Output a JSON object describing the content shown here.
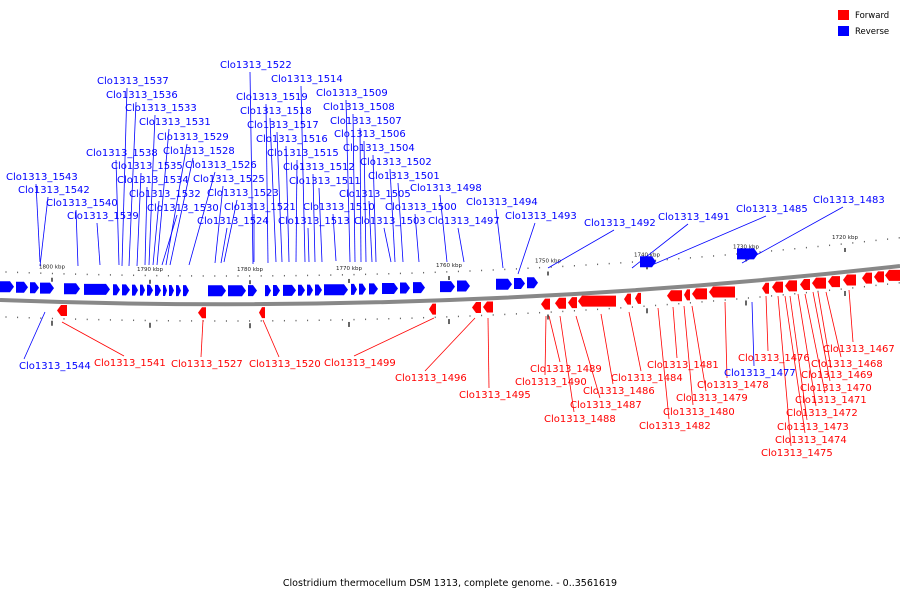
{
  "caption": "Clostridium thermocellum DSM 1313, complete genome. - 0..3561619",
  "legend": [
    {
      "label": "Forward",
      "color": "#ff0000"
    },
    {
      "label": "Reverse",
      "color": "#0000ff"
    }
  ],
  "colors": {
    "forward": "#ff0000",
    "reverse": "#0000ff",
    "backbone": "#888888"
  },
  "tick_labels": [
    "1800 kbp",
    "1790 kbp",
    "1780 kbp",
    "1770 kbp",
    "1760 kbp",
    "1750 kbp",
    "1740 kbp",
    "1730 kbp",
    "1720 kbp"
  ],
  "reverse_genes": [
    "Clo1313_1544",
    "Clo1313_1543",
    "Clo1313_1542",
    "Clo1313_1540",
    "Clo1313_1539",
    "Clo1313_1538",
    "Clo1313_1537",
    "Clo1313_1536",
    "Clo1313_1535",
    "Clo1313_1534",
    "Clo1313_1533",
    "Clo1313_1532",
    "Clo1313_1531",
    "Clo1313_1530",
    "Clo1313_1529",
    "Clo1313_1528",
    "Clo1313_1526",
    "Clo1313_1525",
    "Clo1313_1524",
    "Clo1313_1523",
    "Clo1313_1522",
    "Clo1313_1521",
    "Clo1313_1519",
    "Clo1313_1518",
    "Clo1313_1517",
    "Clo1313_1516",
    "Clo1313_1515",
    "Clo1313_1514",
    "Clo1313_1513",
    "Clo1313_1512",
    "Clo1313_1511",
    "Clo1313_1510",
    "Clo1313_1509",
    "Clo1313_1508",
    "Clo1313_1507",
    "Clo1313_1506",
    "Clo1313_1505",
    "Clo1313_1504",
    "Clo1313_1503",
    "Clo1313_1502",
    "Clo1313_1501",
    "Clo1313_1500",
    "Clo1313_1498",
    "Clo1313_1497",
    "Clo1313_1494",
    "Clo1313_1493",
    "Clo1313_1492",
    "Clo1313_1491",
    "Clo1313_1485",
    "Clo1313_1483",
    "Clo1313_1477"
  ],
  "forward_genes": [
    "Clo1313_1541",
    "Clo1313_1527",
    "Clo1313_1520",
    "Clo1313_1499",
    "Clo1313_1496",
    "Clo1313_1495",
    "Clo1313_1490",
    "Clo1313_1489",
    "Clo1313_1488",
    "Clo1313_1487",
    "Clo1313_1486",
    "Clo1313_1484",
    "Clo1313_1482",
    "Clo1313_1481",
    "Clo1313_1480",
    "Clo1313_1479",
    "Clo1313_1478",
    "Clo1313_1476",
    "Clo1313_1475",
    "Clo1313_1474",
    "Clo1313_1473",
    "Clo1313_1472",
    "Clo1313_1471",
    "Clo1313_1470",
    "Clo1313_1469",
    "Clo1313_1468",
    "Clo1313_1467"
  ]
}
